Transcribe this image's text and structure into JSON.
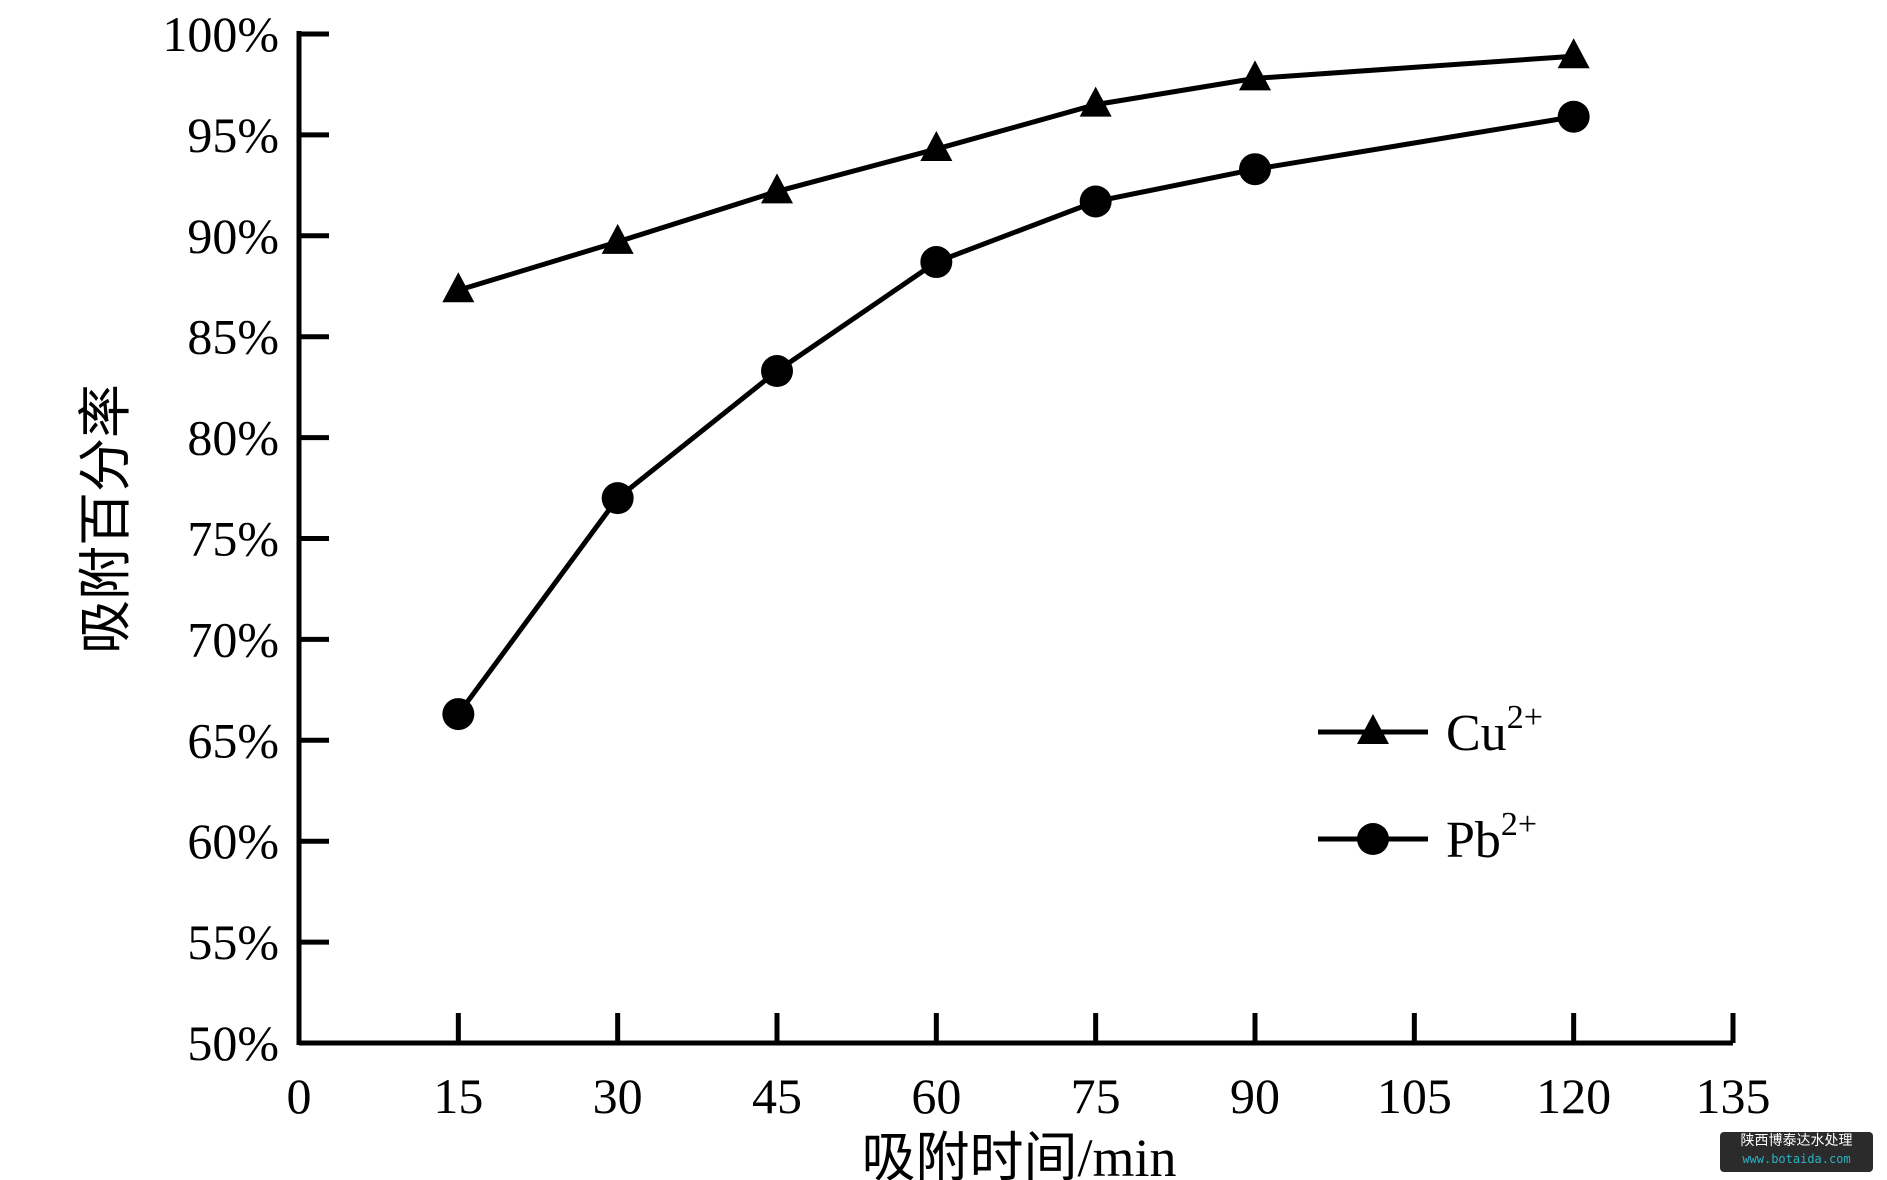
{
  "chart_data": {
    "type": "line",
    "xlabel": "吸附时间/min",
    "ylabel": "吸附百分率",
    "xlim": [
      0,
      135
    ],
    "ylim": [
      50,
      100
    ],
    "x_ticks": [
      "0",
      "15",
      "30",
      "45",
      "60",
      "75",
      "90",
      "105",
      "120",
      "135"
    ],
    "y_ticks": [
      "50%",
      "55%",
      "60%",
      "65%",
      "70%",
      "75%",
      "80%",
      "85%",
      "90%",
      "95%",
      "100%"
    ],
    "grid": false,
    "legend_position": "right",
    "x": [
      15,
      30,
      45,
      60,
      75,
      90,
      120
    ],
    "series": [
      {
        "name": "Cu",
        "sup": "2+",
        "marker": "triangle",
        "values": [
          87.3,
          89.7,
          92.2,
          94.3,
          96.5,
          97.8,
          98.9
        ]
      },
      {
        "name": "Pb",
        "sup": "2+",
        "marker": "circle",
        "values": [
          66.3,
          77.0,
          83.3,
          88.7,
          91.7,
          93.3,
          95.9
        ]
      }
    ]
  },
  "watermark": {
    "line1": "陕西博泰达水处理",
    "line2": "www.botaida.com"
  }
}
